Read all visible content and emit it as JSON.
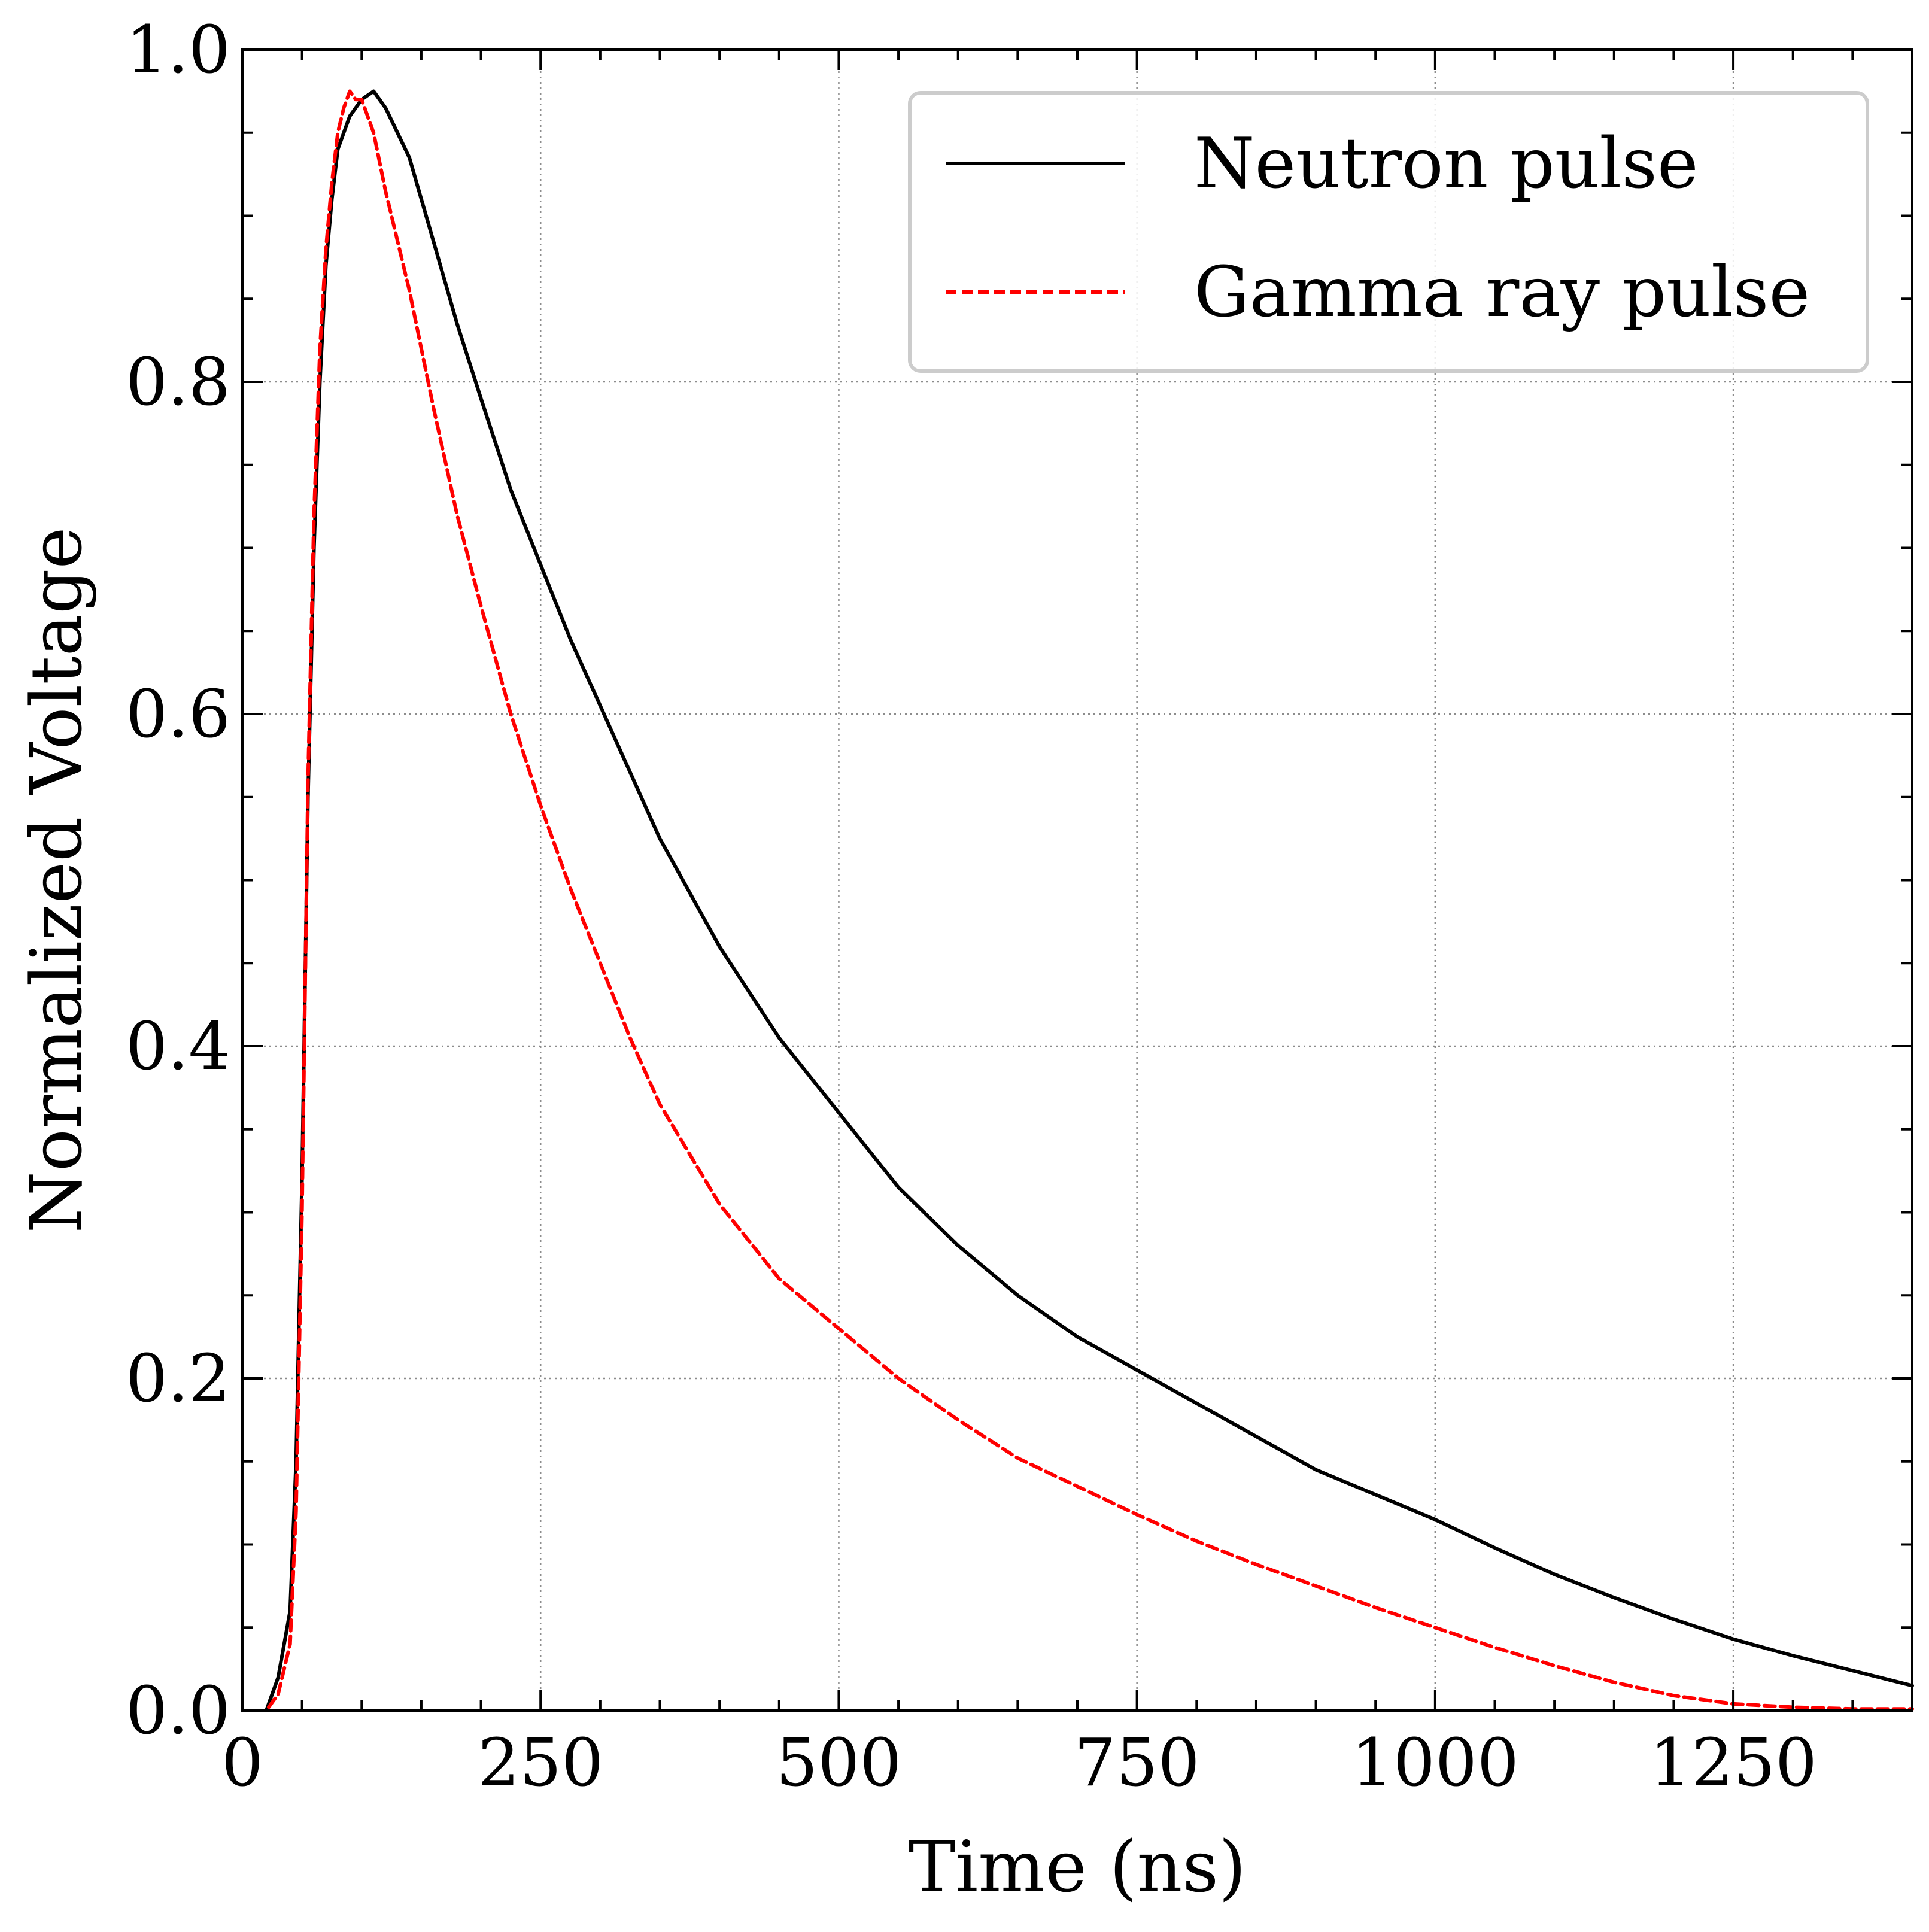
{
  "chart_data": {
    "type": "line",
    "title": "",
    "xlabel": "Time (ns)",
    "ylabel": "Normalized Voltage",
    "xlim": [
      0,
      1400
    ],
    "ylim": [
      0.0,
      1.0
    ],
    "grid": true,
    "legend_position": "top-right",
    "x_ticks": [
      0,
      250,
      500,
      750,
      1000,
      1250
    ],
    "x_tick_labels": [
      "0",
      "250",
      "500",
      "750",
      "1000",
      "1250"
    ],
    "y_ticks": [
      0.0,
      0.2,
      0.4,
      0.6,
      0.8,
      1.0
    ],
    "y_tick_labels": [
      "0.0",
      "0.2",
      "0.4",
      "0.6",
      "0.8",
      "1.0"
    ],
    "series": [
      {
        "name": "Neutron pulse",
        "color": "#000000",
        "style": "solid",
        "x": [
          10,
          20,
          30,
          40,
          45,
          50,
          55,
          60,
          65,
          70,
          75,
          80,
          90,
          100,
          110,
          120,
          140,
          160,
          180,
          200,
          225,
          250,
          275,
          300,
          350,
          400,
          450,
          500,
          550,
          600,
          650,
          700,
          750,
          800,
          850,
          900,
          950,
          1000,
          1050,
          1100,
          1150,
          1200,
          1250,
          1300,
          1350,
          1400
        ],
        "y": [
          0.0,
          0.0,
          0.02,
          0.06,
          0.15,
          0.32,
          0.55,
          0.7,
          0.8,
          0.87,
          0.91,
          0.94,
          0.96,
          0.97,
          0.975,
          0.965,
          0.935,
          0.885,
          0.835,
          0.79,
          0.735,
          0.69,
          0.645,
          0.605,
          0.525,
          0.46,
          0.405,
          0.36,
          0.315,
          0.28,
          0.25,
          0.225,
          0.205,
          0.185,
          0.165,
          0.145,
          0.13,
          0.115,
          0.098,
          0.082,
          0.068,
          0.055,
          0.043,
          0.033,
          0.024,
          0.015
        ]
      },
      {
        "name": "Gamma ray pulse",
        "color": "#ff0000",
        "style": "dashed",
        "x": [
          10,
          20,
          30,
          40,
          45,
          50,
          55,
          60,
          65,
          70,
          75,
          80,
          85,
          90,
          95,
          100,
          110,
          120,
          140,
          160,
          180,
          200,
          225,
          250,
          275,
          300,
          325,
          350,
          400,
          450,
          500,
          550,
          600,
          650,
          700,
          750,
          800,
          850,
          900,
          950,
          1000,
          1050,
          1100,
          1150,
          1200,
          1250,
          1300,
          1350,
          1400
        ],
        "y": [
          0.0,
          0.0,
          0.01,
          0.04,
          0.12,
          0.3,
          0.56,
          0.72,
          0.82,
          0.88,
          0.92,
          0.95,
          0.965,
          0.975,
          0.97,
          0.97,
          0.95,
          0.915,
          0.855,
          0.785,
          0.72,
          0.665,
          0.6,
          0.545,
          0.495,
          0.45,
          0.405,
          0.365,
          0.305,
          0.26,
          0.23,
          0.2,
          0.175,
          0.152,
          0.135,
          0.118,
          0.102,
          0.088,
          0.075,
          0.062,
          0.05,
          0.038,
          0.027,
          0.017,
          0.009,
          0.004,
          0.002,
          0.001,
          0.001
        ]
      }
    ]
  }
}
